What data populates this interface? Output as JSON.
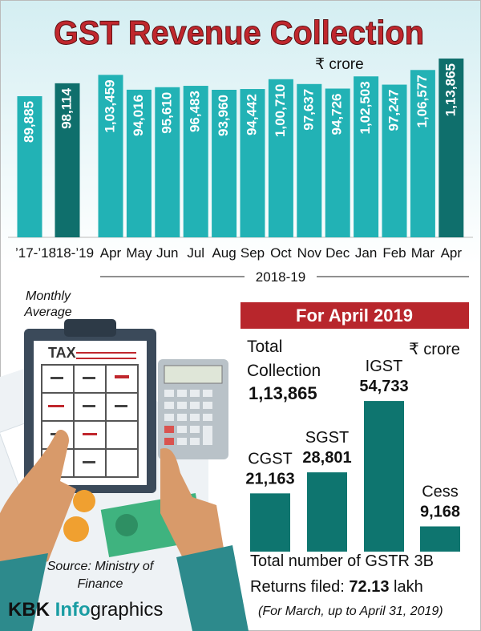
{
  "chart_data": [
    {
      "type": "bar",
      "title": "GST Revenue Collection",
      "unit": "₹ crore",
      "categories": [
        "’17-’18",
        "’18-’19",
        "Apr",
        "May",
        "Jun",
        "Jul",
        "Aug",
        "Sep",
        "Oct",
        "Nov",
        "Dec",
        "Jan",
        "Feb",
        "Mar",
        "Apr"
      ],
      "values": [
        89885,
        98114,
        103459,
        94016,
        95610,
        96483,
        93960,
        94442,
        100710,
        97637,
        94726,
        102503,
        97247,
        106577,
        113865
      ],
      "value_labels": [
        "89,885",
        "98,114",
        "1,03,459",
        "94,016",
        "95,610",
        "96,483",
        "93,960",
        "94,442",
        "1,00,710",
        "97,637",
        "94,726",
        "1,02,503",
        "97,247",
        "1,06,577",
        "1,13,865"
      ],
      "colors": [
        "#22b2b5",
        "#0f6f6c",
        "#22b2b5",
        "#22b2b5",
        "#22b2b5",
        "#22b2b5",
        "#22b2b5",
        "#22b2b5",
        "#22b2b5",
        "#22b2b5",
        "#22b2b5",
        "#22b2b5",
        "#22b2b5",
        "#22b2b5",
        "#0f6f6c"
      ],
      "ylim": [
        0,
        120000
      ],
      "group_labels": [
        "Monthly Average",
        "2018-19"
      ]
    },
    {
      "type": "bar",
      "title": "For April 2019",
      "unit": "₹ crore",
      "categories": [
        "CGST",
        "SGST",
        "IGST",
        "Cess"
      ],
      "values": [
        21163,
        28801,
        54733,
        9168
      ],
      "value_labels": [
        "21,163",
        "28,801",
        "54,733",
        "9,168"
      ],
      "color": "#0e756f",
      "ylim": [
        0,
        60000
      ]
    }
  ],
  "total": {
    "label": "Total Collection",
    "value": "1,13,865"
  },
  "returns": {
    "line1": "Total number of GSTR 3B",
    "label": "Returns filed:",
    "value": 72.13,
    "unit": "lakh",
    "note": "(For March, up to April 31, 2019)"
  },
  "source": "Source: Ministry of Finance",
  "brand": {
    "part1": "KBK",
    "part2": "Info",
    "part3": "graphics"
  },
  "illustration": {
    "clipboard_label": "TAX"
  }
}
